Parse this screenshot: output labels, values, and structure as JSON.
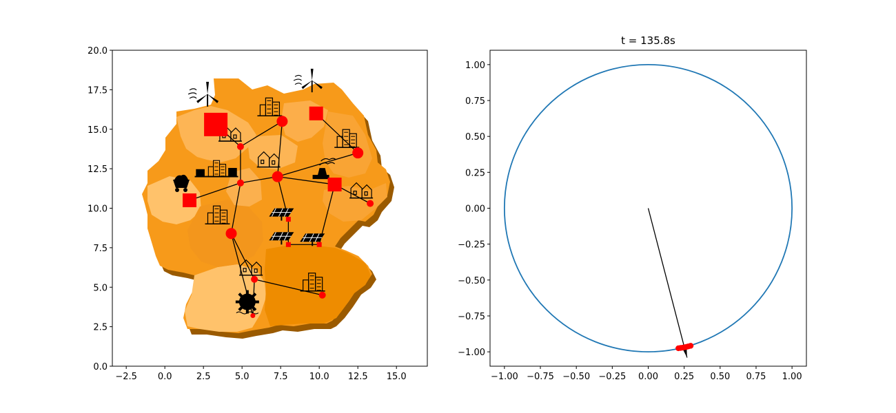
{
  "chart_data": [
    {
      "type": "scatter",
      "title": "",
      "xlabel": "",
      "ylabel": "",
      "xlim": [
        -3.4,
        17.0
      ],
      "ylim": [
        0.0,
        20.0
      ],
      "xticks": [
        -2.5,
        0.0,
        2.5,
        5.0,
        7.5,
        10.0,
        12.5,
        15.0
      ],
      "yticks": [
        0.0,
        2.5,
        5.0,
        7.5,
        10.0,
        12.5,
        15.0,
        17.5,
        20.0
      ],
      "xtick_labels": [
        "−2.5",
        "0.0",
        "2.5",
        "5.0",
        "7.5",
        "10.0",
        "12.5",
        "15.0"
      ],
      "ytick_labels": [
        "0.0",
        "2.5",
        "5.0",
        "7.5",
        "10.0",
        "12.5",
        "15.0",
        "17.5",
        "20.0"
      ],
      "grid": false,
      "background": "map of Germany (federal states, orange shades)",
      "colors": {
        "node": "#ff0000",
        "edge": "#000000",
        "map_light": "#fdb555",
        "map_mid": "#f79a1a",
        "map_dark": "#ee8c00",
        "map_side": "#9a5a00"
      },
      "nodes": [
        {
          "id": "n1",
          "x": 3.3,
          "y": 15.3,
          "shape": "square",
          "size": 3,
          "icon": "wind-turbine-icon"
        },
        {
          "id": "n2",
          "x": 7.6,
          "y": 15.5,
          "shape": "circle",
          "size": 2,
          "icon": "city-icon"
        },
        {
          "id": "n3",
          "x": 9.8,
          "y": 16.0,
          "shape": "square",
          "size": 2,
          "icon": "wind-turbine-icon"
        },
        {
          "id": "n4",
          "x": 4.9,
          "y": 13.9,
          "shape": "circle",
          "size": 1,
          "icon": "town-icon"
        },
        {
          "id": "n5",
          "x": 12.5,
          "y": 13.5,
          "shape": "circle",
          "size": 2,
          "icon": "city-icon"
        },
        {
          "id": "n6",
          "x": 7.3,
          "y": 12.0,
          "shape": "circle",
          "size": 2,
          "icon": "town-icon"
        },
        {
          "id": "n7",
          "x": 4.9,
          "y": 11.6,
          "shape": "circle",
          "size": 1,
          "icon": "industry-city-icon"
        },
        {
          "id": "n8",
          "x": 11.0,
          "y": 11.5,
          "shape": "square",
          "size": 2,
          "icon": "coal-plant-icon"
        },
        {
          "id": "n9",
          "x": 13.3,
          "y": 10.3,
          "shape": "circle",
          "size": 1,
          "icon": "town-icon"
        },
        {
          "id": "n10",
          "x": 1.6,
          "y": 10.5,
          "shape": "square",
          "size": 2,
          "icon": "coal-cart-icon"
        },
        {
          "id": "n11",
          "x": 4.3,
          "y": 8.4,
          "shape": "circle",
          "size": 2,
          "icon": "city-icon"
        },
        {
          "id": "n12",
          "x": 8.0,
          "y": 9.3,
          "shape": "square",
          "size": 0,
          "icon": "solar-panel-icon"
        },
        {
          "id": "n13",
          "x": 8.0,
          "y": 7.7,
          "shape": "square",
          "size": 0,
          "icon": "solar-panel-icon"
        },
        {
          "id": "n14",
          "x": 10.0,
          "y": 7.7,
          "shape": "square",
          "size": 0,
          "icon": "solar-panel-icon"
        },
        {
          "id": "n15",
          "x": 5.8,
          "y": 5.5,
          "shape": "circle",
          "size": 1,
          "icon": "town-icon"
        },
        {
          "id": "n16",
          "x": 10.2,
          "y": 4.5,
          "shape": "circle",
          "size": 1,
          "icon": "city-icon"
        },
        {
          "id": "n17",
          "x": 5.7,
          "y": 3.2,
          "shape": "circle",
          "size": 0,
          "icon": "water-mill-icon"
        }
      ],
      "edges": [
        [
          "n1",
          "n4"
        ],
        [
          "n4",
          "n7"
        ],
        [
          "n2",
          "n6"
        ],
        [
          "n2",
          "n4"
        ],
        [
          "n3",
          "n5"
        ],
        [
          "n6",
          "n7"
        ],
        [
          "n6",
          "n5"
        ],
        [
          "n6",
          "n8"
        ],
        [
          "n7",
          "n10"
        ],
        [
          "n7",
          "n11"
        ],
        [
          "n8",
          "n9"
        ],
        [
          "n8",
          "n14"
        ],
        [
          "n6",
          "n12"
        ],
        [
          "n12",
          "n13"
        ],
        [
          "n13",
          "n14"
        ],
        [
          "n11",
          "n15"
        ],
        [
          "n15",
          "n16"
        ],
        [
          "n15",
          "n17"
        ],
        [
          "n11",
          "n17"
        ]
      ]
    },
    {
      "type": "line",
      "title": "t = 135.8s",
      "xlabel": "",
      "ylabel": "",
      "xlim": [
        -1.1,
        1.1
      ],
      "ylim": [
        -1.1,
        1.1
      ],
      "xticks": [
        -1.0,
        -0.75,
        -0.5,
        -0.25,
        0.0,
        0.25,
        0.5,
        0.75,
        1.0
      ],
      "yticks": [
        -1.0,
        -0.75,
        -0.5,
        -0.25,
        0.0,
        0.25,
        0.5,
        0.75,
        1.0
      ],
      "xtick_labels": [
        "−1.00",
        "−0.75",
        "−0.50",
        "−0.25",
        "0.00",
        "0.25",
        "0.50",
        "0.75",
        "1.00"
      ],
      "ytick_labels": [
        "−1.00",
        "−0.75",
        "−0.50",
        "−0.25",
        "0.00",
        "0.25",
        "0.50",
        "0.75",
        "1.00"
      ],
      "grid": false,
      "colors": {
        "circle": "#1f77b4",
        "arrow": "#000000",
        "points": "#ff0000"
      },
      "unit_circle": {
        "radius": 1.0
      },
      "arrow": {
        "from": [
          0.0,
          0.0
        ],
        "to": [
          0.27,
          -1.04
        ]
      },
      "points": [
        {
          "x": 0.21,
          "y": -0.975
        },
        {
          "x": 0.225,
          "y": -0.973
        },
        {
          "x": 0.24,
          "y": -0.971
        },
        {
          "x": 0.255,
          "y": -0.968
        },
        {
          "x": 0.268,
          "y": -0.965
        },
        {
          "x": 0.28,
          "y": -0.962
        },
        {
          "x": 0.295,
          "y": -0.958
        }
      ]
    }
  ]
}
